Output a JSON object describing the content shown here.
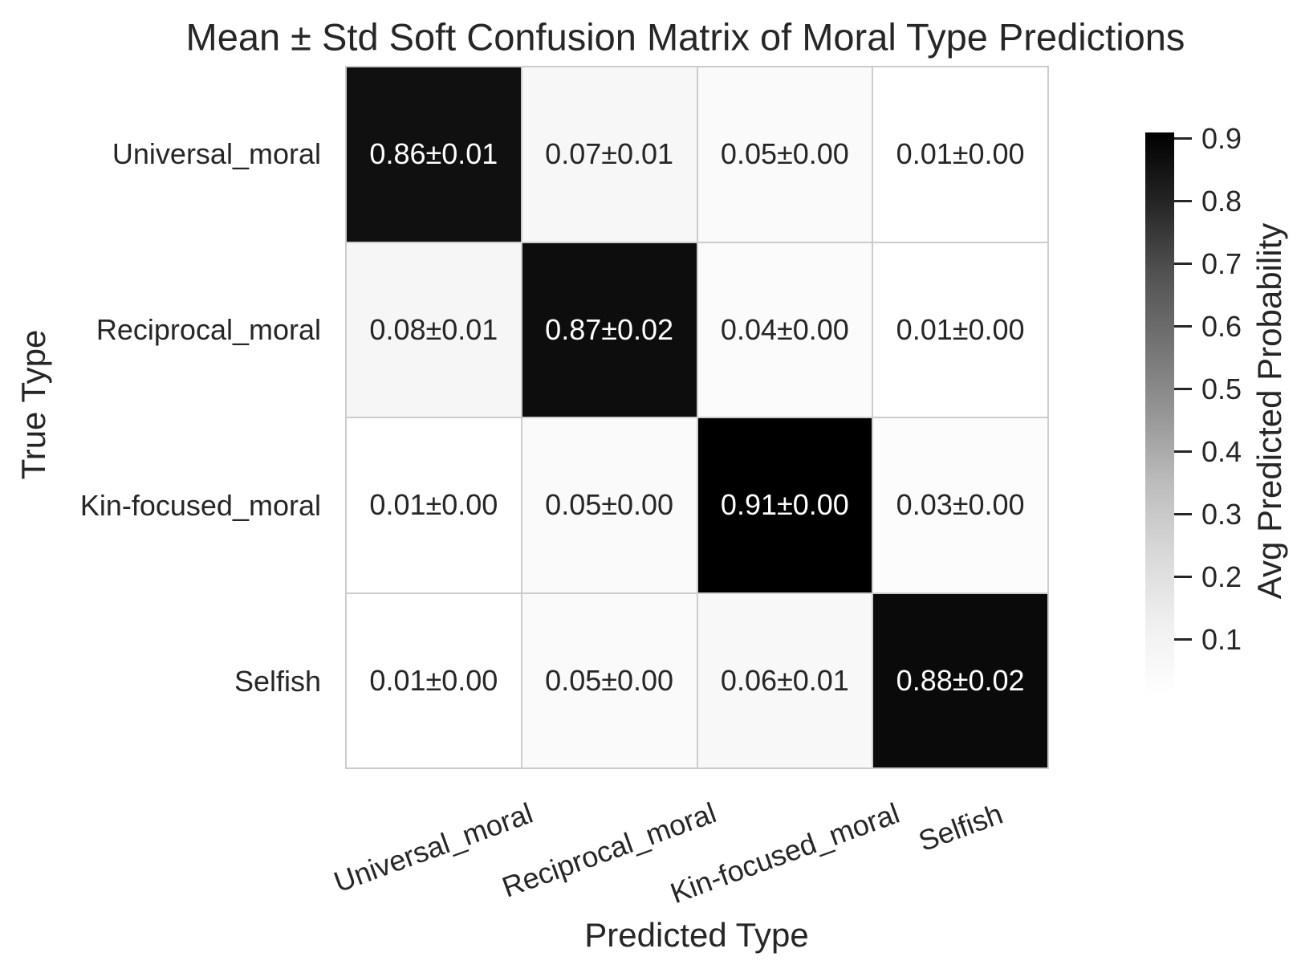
{
  "figure": {
    "background": "#ffffff",
    "text_color": "#262626",
    "grid_line_color": "#cccccc"
  },
  "chart_data": {
    "type": "heatmap",
    "title": "Mean ± Std Soft Confusion Matrix of Moral Type Predictions",
    "xlabel": "Predicted Type",
    "ylabel": "True Type",
    "x_categories": [
      "Universal_moral",
      "Reciprocal_moral",
      "Kin-focused_moral",
      "Selfish"
    ],
    "y_categories": [
      "Universal_moral",
      "Reciprocal_moral",
      "Kin-focused_moral",
      "Selfish"
    ],
    "mean": [
      [
        0.86,
        0.07,
        0.05,
        0.01
      ],
      [
        0.08,
        0.87,
        0.04,
        0.01
      ],
      [
        0.01,
        0.05,
        0.91,
        0.03
      ],
      [
        0.01,
        0.05,
        0.06,
        0.88
      ]
    ],
    "std": [
      [
        0.01,
        0.01,
        0.0,
        0.0
      ],
      [
        0.01,
        0.02,
        0.0,
        0.0
      ],
      [
        0.0,
        0.0,
        0.0,
        0.0
      ],
      [
        0.0,
        0.0,
        0.01,
        0.02
      ]
    ],
    "cell_labels": [
      [
        "0.86±0.01",
        "0.07±0.01",
        "0.05±0.00",
        "0.01±0.00"
      ],
      [
        "0.08±0.01",
        "0.87±0.02",
        "0.04±0.00",
        "0.01±0.00"
      ],
      [
        "0.01±0.00",
        "0.05±0.00",
        "0.91±0.00",
        "0.03±0.00"
      ],
      [
        "0.01±0.00",
        "0.05±0.00",
        "0.06±0.01",
        "0.88±0.02"
      ]
    ],
    "colorbar": {
      "label": "Avg Predicted Probability",
      "tick_labels": [
        "0.9",
        "0.8",
        "0.7",
        "0.6",
        "0.5",
        "0.4",
        "0.3",
        "0.2",
        "0.1"
      ],
      "tick_values": [
        0.9,
        0.8,
        0.7,
        0.6,
        0.5,
        0.4,
        0.3,
        0.2,
        0.1
      ],
      "vmin": 0.01,
      "vmax": 0.91,
      "colormap": "Greys",
      "stops": [
        "#ffffff",
        "#f0f0f0",
        "#d9d9d9",
        "#bdbdbd",
        "#969696",
        "#737373",
        "#525252",
        "#252525",
        "#000000"
      ]
    },
    "layout_hints": {
      "grid": true,
      "legend_position": "right-colorbar",
      "x_tick_rotation_deg": 20
    }
  }
}
